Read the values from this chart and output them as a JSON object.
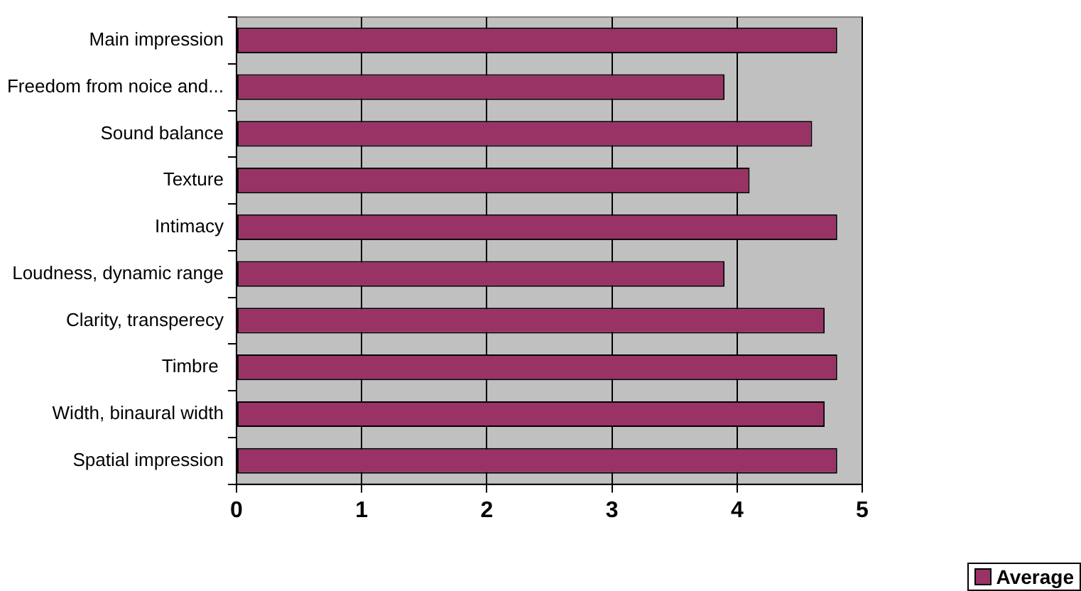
{
  "chart_data": {
    "type": "bar",
    "orientation": "horizontal",
    "categories": [
      "Main impression",
      "Freedom from noice and...",
      "Sound balance",
      "Texture",
      "Intimacy",
      "Loudness, dynamic range",
      "Clarity, transperecy",
      "Timbre ",
      "Width, binaural width",
      "Spatial impression"
    ],
    "series": [
      {
        "name": "Average",
        "color": "#993366",
        "values": [
          4.8,
          3.9,
          4.6,
          4.1,
          4.8,
          3.9,
          4.7,
          4.8,
          4.7,
          4.8
        ]
      }
    ],
    "xlim": [
      0,
      5
    ],
    "xticks": [
      0,
      1,
      2,
      3,
      4,
      5
    ],
    "grid": "x",
    "legend": "bottom right"
  }
}
